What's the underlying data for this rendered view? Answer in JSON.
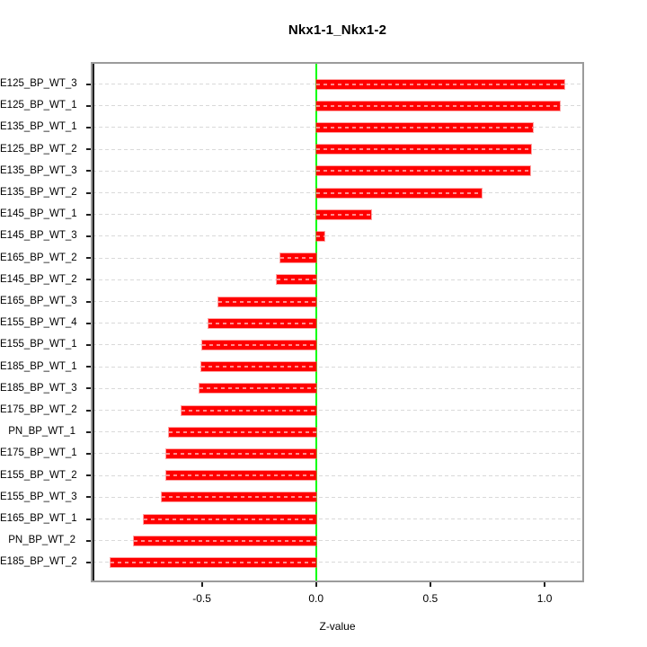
{
  "chart_data": {
    "type": "bar",
    "orientation": "horizontal",
    "title": "Nkx1-1_Nkx1-2",
    "xlabel": "Z-value",
    "ylabel": "",
    "categories": [
      "E125_BP_WT_3",
      "E125_BP_WT_1",
      "E135_BP_WT_1",
      "E125_BP_WT_2",
      "E135_BP_WT_3",
      "E135_BP_WT_2",
      "E145_BP_WT_1",
      "E145_BP_WT_3",
      "E165_BP_WT_2",
      "E145_BP_WT_2",
      "E165_BP_WT_3",
      "E155_BP_WT_4",
      "E155_BP_WT_1",
      "E185_BP_WT_1",
      "E185_BP_WT_3",
      "E175_BP_WT_2",
      "PN_BP_WT_1",
      "E175_BP_WT_1",
      "E155_BP_WT_2",
      "E155_BP_WT_3",
      "E165_BP_WT_1",
      "PN_BP_WT_2",
      "E185_BP_WT_2"
    ],
    "values": [
      1.087,
      1.067,
      0.949,
      0.941,
      0.937,
      0.724,
      0.239,
      0.035,
      -0.157,
      -0.173,
      -0.429,
      -0.472,
      -0.5,
      -0.504,
      -0.512,
      -0.59,
      -0.642,
      -0.654,
      -0.657,
      -0.677,
      -0.752,
      -0.799,
      -0.898
    ],
    "x_ticks": [
      -0.5,
      0.0,
      0.5,
      1.0
    ],
    "x_tick_labels": [
      "-0.5",
      "0.0",
      "0.5",
      "1.0"
    ],
    "xlim": [
      -0.978,
      1.165
    ],
    "grid": true,
    "grid_style": "dashed",
    "zero_line": true,
    "legend": "none",
    "colors": {
      "bar": "#ff0000",
      "bar_dash_overlay": "rgba(255,255,255,0.55)",
      "zero_line": "#00ff00",
      "grid": "#d9d9d9",
      "frame": "#9b9b9b",
      "axis": "#1f1f1f",
      "text": "#000000",
      "background": "#ffffff"
    }
  }
}
